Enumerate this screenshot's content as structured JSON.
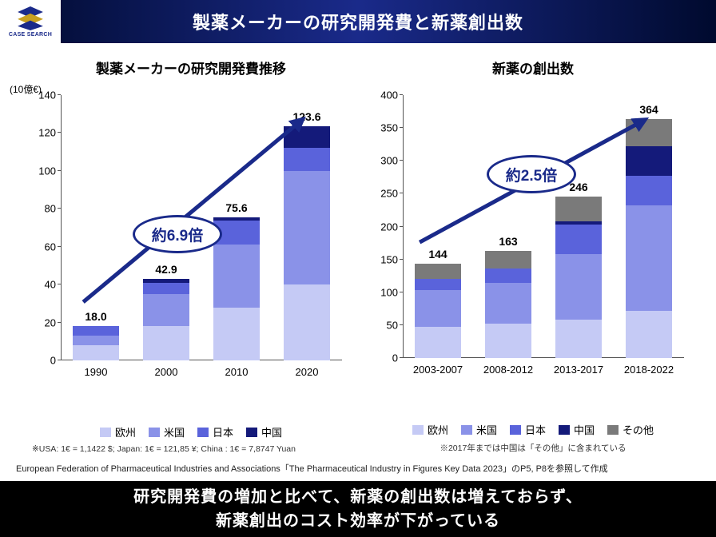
{
  "header": {
    "logo_text": "CASE SEARCH",
    "title": "製薬メーカーの研究開発費と新薬創出数"
  },
  "colors": {
    "europe": "#c5caf5",
    "us": "#8a92e8",
    "japan": "#5a63db",
    "china": "#141a7a",
    "other": "#7a7a7a",
    "arrow": "#1a2a8a",
    "bubble_border": "#1a2a8a"
  },
  "left_chart": {
    "title": "製薬メーカーの研究開発費推移",
    "unit_label": "(10億€)",
    "ymax": 140,
    "ytick_step": 20,
    "categories": [
      "1990",
      "2000",
      "2010",
      "2020"
    ],
    "totals": [
      "18.0",
      "42.9",
      "75.6",
      "123.6"
    ],
    "series_keys": [
      "europe",
      "us",
      "japan",
      "china"
    ],
    "legend_labels": {
      "europe": "欧州",
      "us": "米国",
      "japan": "日本",
      "china": "中国"
    },
    "stacks": [
      {
        "europe": 8,
        "us": 5,
        "japan": 5,
        "china": 0
      },
      {
        "europe": 18,
        "us": 17,
        "japan": 5.9,
        "china": 2
      },
      {
        "europe": 28,
        "us": 33,
        "japan": 12.6,
        "china": 2
      },
      {
        "europe": 40,
        "us": 60,
        "japan": 12,
        "china": 11.6
      }
    ],
    "bubble_text": "約6.9倍",
    "footnote": "※USA: 1€ = 1,1422 $; Japan: 1€ = 121,85 ¥; China : 1€ = 7,8747 Yuan"
  },
  "right_chart": {
    "title": "新薬の創出数",
    "ymax": 400,
    "ytick_step": 50,
    "categories": [
      "2003-2007",
      "2008-2012",
      "2013-2017",
      "2018-2022"
    ],
    "totals": [
      "144",
      "163",
      "246",
      "364"
    ],
    "series_keys": [
      "europe",
      "us",
      "japan",
      "china",
      "other"
    ],
    "legend_labels": {
      "europe": "欧州",
      "us": "米国",
      "japan": "日本",
      "china": "中国",
      "other": "その他"
    },
    "stacks": [
      {
        "europe": 48,
        "us": 55,
        "japan": 18,
        "china": 0,
        "other": 23
      },
      {
        "europe": 52,
        "us": 62,
        "japan": 22,
        "china": 0,
        "other": 27
      },
      {
        "europe": 58,
        "us": 100,
        "japan": 45,
        "china": 5,
        "other": 38
      },
      {
        "europe": 72,
        "us": 160,
        "japan": 45,
        "china": 45,
        "other": 42
      }
    ],
    "bubble_text": "約2.5倍",
    "footnote": "※2017年までは中国は「その他」に含まれている"
  },
  "source_note": "European Federation of Pharmaceutical Industries and Associations「The Pharmaceutical Industry in Figures Key Data 2023」のP5, P8を参照して作成",
  "footer": {
    "line1": "研究開発費の増加と比べて、新薬の創出数は増えておらず、",
    "line2": "新薬創出のコスト効率が下がっている"
  }
}
